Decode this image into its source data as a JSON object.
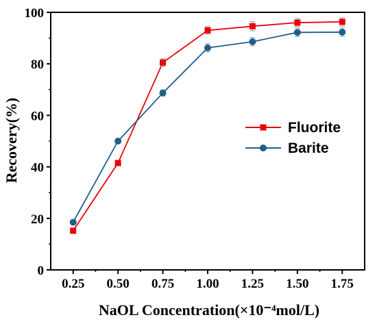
{
  "chart_data": {
    "type": "line",
    "title": "",
    "xlabel": "NaOL Concentration(×10⁻⁴mol/L)",
    "ylabel": "Recovery(%)",
    "x": [
      0.25,
      0.5,
      0.75,
      1.0,
      1.25,
      1.5,
      1.75
    ],
    "x_tick_labels": [
      "0.25",
      "0.50",
      "0.75",
      "1.00",
      "1.25",
      "1.50",
      "1.75"
    ],
    "xlim": [
      0.125,
      1.875
    ],
    "ylim": [
      0,
      100
    ],
    "y_ticks": [
      0,
      20,
      40,
      60,
      80,
      100
    ],
    "y_tick_labels": [
      "0",
      "20",
      "40",
      "60",
      "80",
      "100"
    ],
    "grid": false,
    "legend_position": "right",
    "series": [
      {
        "name": "Fluorite",
        "color": "#e8000b",
        "marker": "square",
        "values": [
          15.2,
          41.5,
          80.5,
          93.0,
          94.6,
          96.0,
          96.3
        ],
        "errors": [
          0.8,
          0.8,
          1.5,
          1.5,
          1.8,
          1.6,
          1.6
        ]
      },
      {
        "name": "Barite",
        "color": "#1f5f8b",
        "marker": "circle",
        "values": [
          18.5,
          50.0,
          68.7,
          86.2,
          88.6,
          92.2,
          92.3
        ],
        "errors": [
          0.8,
          0.8,
          1.2,
          1.6,
          1.6,
          1.6,
          1.6
        ]
      }
    ]
  }
}
